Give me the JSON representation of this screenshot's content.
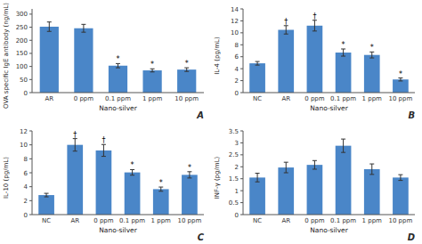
{
  "chart_data": [
    {
      "type": "bar",
      "title": "A",
      "categories": [
        "AR",
        "0 ppm",
        "0.1 ppm",
        "1 ppm",
        "10 ppm"
      ],
      "values": [
        252,
        246,
        103,
        85,
        88
      ],
      "errors": [
        18,
        15,
        8,
        6,
        7
      ],
      "ylabel": "OVA specific IgE antibody (ng/mL)",
      "xlabel": "Nano-silver",
      "ylim": [
        0,
        320
      ],
      "yticks": [
        0,
        50,
        100,
        150,
        200,
        250,
        300
      ],
      "color": "#4a86c8",
      "annotations": [
        {
          "x": "0.1 ppm",
          "text": "*"
        },
        {
          "x": "1 ppm",
          "text": "*"
        },
        {
          "x": "10 ppm",
          "text": "*"
        }
      ]
    },
    {
      "type": "bar",
      "title": "B",
      "categories": [
        "NC",
        "AR",
        "0 ppm",
        "0.1 ppm",
        "1 ppm",
        "10 ppm"
      ],
      "values": [
        4.9,
        10.5,
        11.2,
        6.7,
        6.3,
        2.2
      ],
      "errors": [
        0.3,
        0.7,
        0.9,
        0.6,
        0.5,
        0.25
      ],
      "ylabel": "IL-4 (pg/mL)",
      "xlabel": "Nano-silver",
      "ylim": [
        0,
        14
      ],
      "yticks": [
        0,
        2,
        4,
        6,
        8,
        10,
        12,
        14
      ],
      "color": "#4a86c8",
      "annotations": [
        {
          "x": "AR",
          "text": "†"
        },
        {
          "x": "0 ppm",
          "text": "†"
        },
        {
          "x": "0.1 ppm",
          "text": "*"
        },
        {
          "x": "1 ppm",
          "text": "*"
        },
        {
          "x": "10 ppm",
          "text": "*"
        }
      ]
    },
    {
      "type": "bar",
      "title": "C",
      "categories": [
        "NC",
        "AR",
        "0 ppm",
        "0.1 ppm",
        "1 ppm",
        "10 ppm"
      ],
      "values": [
        2.8,
        10.0,
        9.2,
        6.05,
        3.65,
        5.7
      ],
      "errors": [
        0.25,
        0.9,
        0.85,
        0.4,
        0.3,
        0.45
      ],
      "ylabel": "IL-10 (pg/mL)",
      "xlabel": "Nano-silver",
      "ylim": [
        0,
        12
      ],
      "yticks": [
        0,
        2,
        4,
        6,
        8,
        10,
        12
      ],
      "color": "#4a86c8",
      "annotations": [
        {
          "x": "AR",
          "text": "†"
        },
        {
          "x": "0 ppm",
          "text": "†"
        },
        {
          "x": "0.1 ppm",
          "text": "*"
        },
        {
          "x": "1 ppm",
          "text": "*"
        },
        {
          "x": "10 ppm",
          "text": "*"
        }
      ]
    },
    {
      "type": "bar",
      "title": "D",
      "categories": [
        "NC",
        "AR",
        "0 ppm",
        "0.1 ppm",
        "1 ppm",
        "10 ppm"
      ],
      "values": [
        1.55,
        1.97,
        2.08,
        2.88,
        1.9,
        1.55
      ],
      "errors": [
        0.18,
        0.22,
        0.18,
        0.28,
        0.22,
        0.12
      ],
      "ylabel": "INF-γ (pg/mL)",
      "xlabel": "Nano-silver",
      "ylim": [
        0,
        3.5
      ],
      "yticks": [
        0,
        0.5,
        1,
        1.5,
        2,
        2.5,
        3,
        3.5
      ],
      "color": "#4a86c8"
    }
  ]
}
